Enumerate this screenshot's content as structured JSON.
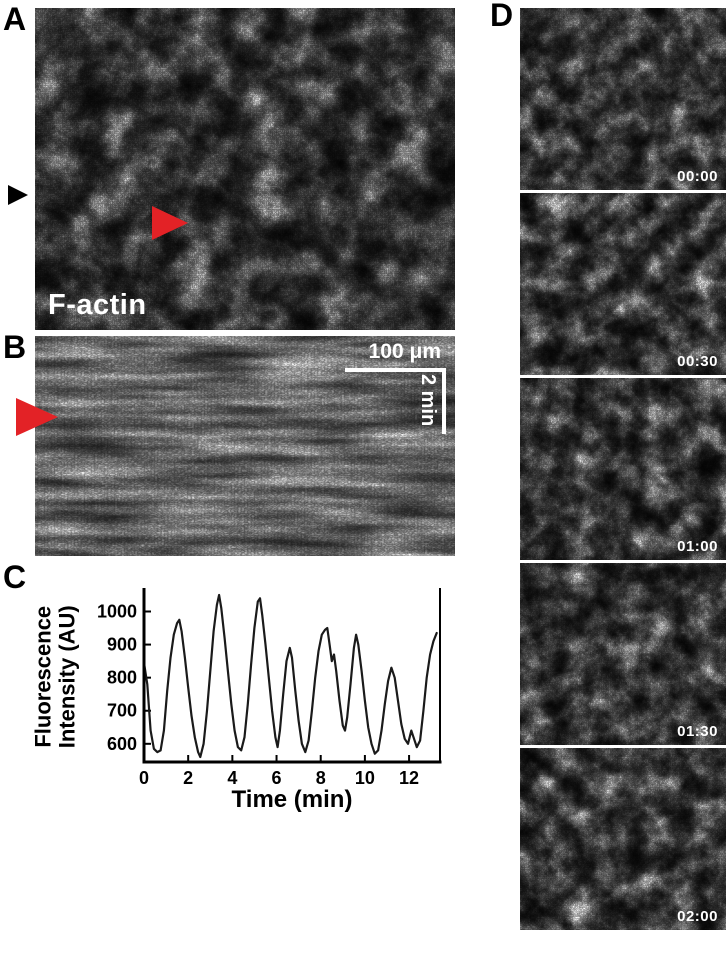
{
  "figure": {
    "panels": {
      "A": {
        "label": "A",
        "annotation": "F-actin"
      },
      "B": {
        "label": "B",
        "scale_bar_space": "100 μm",
        "scale_bar_time": "2 min"
      },
      "C": {
        "label": "C"
      },
      "D": {
        "label": "D",
        "frames": [
          {
            "timestamp": "00:00"
          },
          {
            "timestamp": "00:30"
          },
          {
            "timestamp": "01:00"
          },
          {
            "timestamp": "01:30"
          },
          {
            "timestamp": "02:00"
          }
        ]
      }
    }
  },
  "chart_data": {
    "type": "line",
    "title": "",
    "xlabel": "Time (min)",
    "ylabel": "Fluorescence Intensity (AU)",
    "ylabel_lines": [
      "Fluorescence",
      "Intensity (AU)"
    ],
    "xlim": [
      0,
      13.4
    ],
    "ylim": [
      545,
      1065
    ],
    "xticks": [
      0,
      2,
      4,
      6,
      8,
      10,
      12
    ],
    "yticks": [
      600,
      700,
      800,
      900,
      1000
    ],
    "grid": false,
    "line_color": "#1a1a1a",
    "x": [
      0,
      0.15,
      0.3,
      0.45,
      0.6,
      0.75,
      0.9,
      1.05,
      1.2,
      1.35,
      1.5,
      1.6,
      1.7,
      1.85,
      2.0,
      2.15,
      2.3,
      2.45,
      2.55,
      2.7,
      2.85,
      3.0,
      3.15,
      3.3,
      3.4,
      3.5,
      3.65,
      3.8,
      3.95,
      4.1,
      4.25,
      4.4,
      4.55,
      4.7,
      4.85,
      5.0,
      5.15,
      5.25,
      5.35,
      5.5,
      5.65,
      5.8,
      5.95,
      6.05,
      6.15,
      6.3,
      6.45,
      6.6,
      6.7,
      6.85,
      7.0,
      7.15,
      7.3,
      7.45,
      7.6,
      7.75,
      7.9,
      8.05,
      8.2,
      8.3,
      8.4,
      8.5,
      8.6,
      8.7,
      8.85,
      9.0,
      9.1,
      9.2,
      9.35,
      9.5,
      9.6,
      9.7,
      9.85,
      10.0,
      10.15,
      10.3,
      10.45,
      10.6,
      10.75,
      10.9,
      11.05,
      11.2,
      11.35,
      11.5,
      11.65,
      11.8,
      11.95,
      12.1,
      12.2,
      12.35,
      12.5,
      12.65,
      12.8,
      12.95,
      13.1,
      13.25
    ],
    "y": [
      845,
      780,
      640,
      585,
      575,
      580,
      640,
      760,
      860,
      930,
      965,
      975,
      940,
      860,
      770,
      685,
      620,
      575,
      560,
      600,
      700,
      820,
      940,
      1020,
      1050,
      1010,
      920,
      820,
      720,
      640,
      590,
      580,
      620,
      720,
      840,
      950,
      1030,
      1040,
      990,
      900,
      800,
      700,
      620,
      590,
      640,
      750,
      850,
      890,
      860,
      760,
      670,
      600,
      575,
      610,
      700,
      800,
      880,
      930,
      945,
      950,
      900,
      850,
      870,
      820,
      730,
      655,
      640,
      680,
      780,
      890,
      930,
      900,
      820,
      730,
      650,
      600,
      570,
      580,
      640,
      720,
      790,
      830,
      800,
      730,
      660,
      615,
      600,
      640,
      620,
      590,
      610,
      700,
      800,
      870,
      910,
      935
    ]
  },
  "colors": {
    "arrowhead_red": "#e32226",
    "arrowhead_black": "#000000",
    "annotation_text": "#ffffff",
    "background": "#ffffff"
  }
}
